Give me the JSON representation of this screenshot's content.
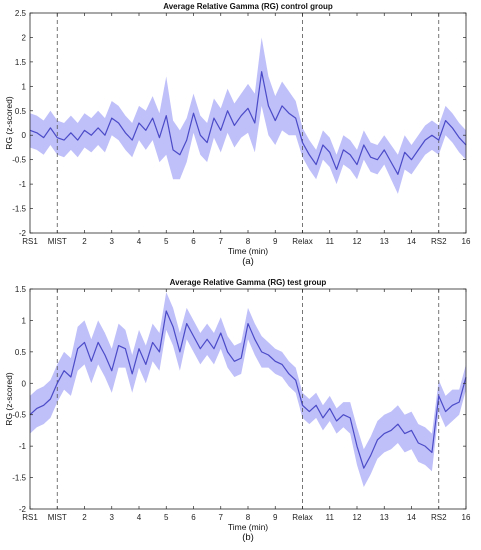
{
  "chart_data": [
    {
      "type": "line",
      "title": "Average Relative Gamma (RG) control group",
      "xlabel": "Time (min)",
      "ylabel": "RG (z-scored)",
      "caption": "(a)",
      "xlim": [
        0,
        16
      ],
      "ylim": [
        -2,
        2.5
      ],
      "yticks": [
        -2,
        -1.5,
        -1,
        -0.5,
        0,
        0.5,
        1,
        1.5,
        2,
        2.5
      ],
      "yticklabels": [
        "-2",
        "-1.5",
        "-1",
        "-0.5",
        "0",
        "0.5",
        "1",
        "1.5",
        "2",
        "2.5"
      ],
      "xticks": [
        0,
        1,
        2,
        3,
        4,
        5,
        6,
        7,
        8,
        9,
        10,
        11,
        12,
        13,
        14,
        15,
        16
      ],
      "xticklabels": [
        "RS1",
        "MIST",
        "2",
        "3",
        "4",
        "5",
        "6",
        "7",
        "8",
        "9",
        "Relax",
        "11",
        "12",
        "13",
        "14",
        "RS2",
        "16"
      ],
      "vlines": [
        1,
        10,
        15
      ],
      "grid": false,
      "line_color": "#4b4bc8",
      "band_color": "#b8b8f8",
      "series": [
        {
          "x": [
            0,
            0.25,
            0.5,
            0.75,
            1,
            1.25,
            1.5,
            1.75,
            2,
            2.25,
            2.5,
            2.75,
            3,
            3.25,
            3.5,
            3.75,
            4,
            4.25,
            4.5,
            4.75,
            5,
            5.25,
            5.5,
            5.75,
            6,
            6.25,
            6.5,
            6.75,
            7,
            7.25,
            7.5,
            7.75,
            8,
            8.25,
            8.5,
            8.75,
            9,
            9.25,
            9.5,
            9.75,
            10,
            10.25,
            10.5,
            10.75,
            11,
            11.25,
            11.5,
            11.75,
            12,
            12.25,
            12.5,
            12.75,
            13,
            13.25,
            13.5,
            13.75,
            14,
            14.25,
            14.5,
            14.75,
            15,
            15.25,
            15.5,
            15.75,
            16
          ],
          "y": [
            0.1,
            0.05,
            -0.05,
            0.15,
            -0.05,
            -0.1,
            0.05,
            -0.1,
            0.1,
            0.0,
            0.15,
            0.0,
            0.35,
            0.25,
            0.05,
            -0.1,
            0.25,
            0.1,
            0.35,
            -0.05,
            0.4,
            -0.3,
            -0.4,
            -0.1,
            0.45,
            0.0,
            -0.15,
            0.35,
            0.1,
            0.5,
            0.2,
            0.4,
            0.55,
            0.25,
            1.3,
            0.6,
            0.3,
            0.6,
            0.45,
            0.35,
            -0.15,
            -0.4,
            -0.6,
            -0.2,
            -0.35,
            -0.7,
            -0.3,
            -0.4,
            -0.6,
            -0.2,
            -0.45,
            -0.5,
            -0.3,
            -0.55,
            -0.8,
            -0.35,
            -0.5,
            -0.3,
            -0.1,
            0.0,
            -0.1,
            0.3,
            0.15,
            -0.05,
            -0.2
          ],
          "band": [
            0.35,
            0.35,
            0.35,
            0.35,
            0.35,
            0.35,
            0.35,
            0.35,
            0.35,
            0.35,
            0.35,
            0.35,
            0.35,
            0.35,
            0.35,
            0.35,
            0.35,
            0.4,
            0.45,
            0.5,
            0.8,
            0.6,
            0.5,
            0.45,
            0.4,
            0.4,
            0.4,
            0.4,
            0.45,
            0.45,
            0.45,
            0.45,
            0.5,
            0.6,
            0.7,
            0.6,
            0.5,
            0.5,
            0.45,
            0.35,
            0.3,
            0.3,
            0.3,
            0.3,
            0.3,
            0.3,
            0.3,
            0.3,
            0.3,
            0.3,
            0.3,
            0.3,
            0.3,
            0.35,
            0.4,
            0.35,
            0.3,
            0.3,
            0.3,
            0.3,
            0.3,
            0.3,
            0.3,
            0.3,
            0.3
          ]
        }
      ]
    },
    {
      "type": "line",
      "title": "Average Relative Gamma (RG) test group",
      "xlabel": "Time (min)",
      "ylabel": "RG (z-scored)",
      "caption": "(b)",
      "xlim": [
        0,
        16
      ],
      "ylim": [
        -2,
        1.5
      ],
      "yticks": [
        -2,
        -1.5,
        -1,
        -0.5,
        0,
        0.5,
        1,
        1.5
      ],
      "yticklabels": [
        "-2",
        "-1.5",
        "-1",
        "-0.5",
        "0",
        "0.5",
        "1",
        "1.5"
      ],
      "xticks": [
        0,
        1,
        2,
        3,
        4,
        5,
        6,
        7,
        8,
        9,
        10,
        11,
        12,
        13,
        14,
        15,
        16
      ],
      "xticklabels": [
        "RS1",
        "MIST",
        "2",
        "3",
        "4",
        "5",
        "6",
        "7",
        "8",
        "9",
        "Relax",
        "11",
        "12",
        "13",
        "14",
        "RS2",
        "16"
      ],
      "vlines": [
        1,
        10,
        15
      ],
      "grid": false,
      "line_color": "#4b4bc8",
      "band_color": "#b8b8f8",
      "series": [
        {
          "x": [
            0,
            0.25,
            0.5,
            0.75,
            1,
            1.25,
            1.5,
            1.75,
            2,
            2.25,
            2.5,
            2.75,
            3,
            3.25,
            3.5,
            3.75,
            4,
            4.25,
            4.5,
            4.75,
            5,
            5.25,
            5.5,
            5.75,
            6,
            6.25,
            6.5,
            6.75,
            7,
            7.25,
            7.5,
            7.75,
            8,
            8.25,
            8.5,
            8.75,
            9,
            9.25,
            9.5,
            9.75,
            10,
            10.25,
            10.5,
            10.75,
            11,
            11.25,
            11.5,
            11.75,
            12,
            12.25,
            12.5,
            12.75,
            13,
            13.25,
            13.5,
            13.75,
            14,
            14.25,
            14.5,
            14.75,
            15,
            15.25,
            15.5,
            15.75,
            16
          ],
          "y": [
            -0.5,
            -0.4,
            -0.35,
            -0.25,
            0.0,
            0.2,
            0.1,
            0.55,
            0.65,
            0.35,
            0.65,
            0.45,
            0.2,
            0.6,
            0.55,
            0.15,
            0.55,
            0.3,
            0.65,
            0.5,
            1.15,
            0.9,
            0.5,
            0.95,
            0.75,
            0.55,
            0.7,
            0.55,
            0.8,
            0.5,
            0.35,
            0.4,
            0.95,
            0.7,
            0.5,
            0.45,
            0.35,
            0.3,
            0.15,
            0.05,
            -0.35,
            -0.45,
            -0.35,
            -0.55,
            -0.4,
            -0.6,
            -0.5,
            -0.55,
            -1.0,
            -1.35,
            -1.15,
            -0.9,
            -0.8,
            -0.75,
            -0.65,
            -0.8,
            -0.75,
            -0.95,
            -1.0,
            -1.1,
            -0.2,
            -0.45,
            -0.35,
            -0.3,
            0.1
          ],
          "band": [
            0.3,
            0.3,
            0.3,
            0.3,
            0.3,
            0.3,
            0.3,
            0.35,
            0.35,
            0.35,
            0.35,
            0.35,
            0.35,
            0.35,
            0.3,
            0.3,
            0.3,
            0.3,
            0.3,
            0.3,
            0.3,
            0.3,
            0.3,
            0.25,
            0.25,
            0.25,
            0.25,
            0.25,
            0.25,
            0.25,
            0.25,
            0.25,
            0.25,
            0.25,
            0.25,
            0.2,
            0.2,
            0.2,
            0.2,
            0.2,
            0.2,
            0.2,
            0.2,
            0.2,
            0.2,
            0.2,
            0.2,
            0.25,
            0.3,
            0.3,
            0.3,
            0.3,
            0.3,
            0.3,
            0.3,
            0.3,
            0.3,
            0.3,
            0.3,
            0.3,
            0.25,
            0.25,
            0.25,
            0.2,
            0.2
          ]
        }
      ]
    }
  ]
}
